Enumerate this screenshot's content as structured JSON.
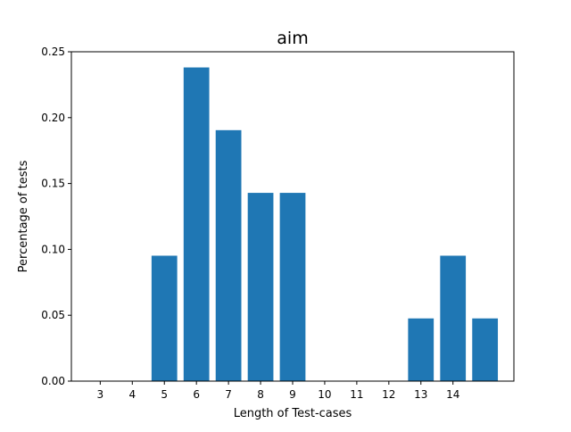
{
  "chart_data": {
    "type": "bar",
    "title": "aim",
    "xlabel": "Length of Test-cases",
    "ylabel": "Percentage of tests",
    "x_tick_labels": [
      "3",
      "4",
      "5",
      "6",
      "7",
      "8",
      "9",
      "10",
      "11",
      "12",
      "13",
      "14"
    ],
    "bars": [
      {
        "x": 3,
        "value": 0.0
      },
      {
        "x": 4,
        "value": 0.0
      },
      {
        "x": 5,
        "value": 0.0952
      },
      {
        "x": 6,
        "value": 0.2381
      },
      {
        "x": 7,
        "value": 0.1905
      },
      {
        "x": 8,
        "value": 0.1429
      },
      {
        "x": 9,
        "value": 0.1429
      },
      {
        "x": 10,
        "value": 0.0
      },
      {
        "x": 11,
        "value": 0.0
      },
      {
        "x": 12,
        "value": 0.0
      },
      {
        "x": 13,
        "value": 0.0476
      },
      {
        "x": 14,
        "value": 0.0952
      },
      {
        "x": 15,
        "value": 0.0476
      }
    ],
    "y_ticks": [
      "0.00",
      "0.05",
      "0.10",
      "0.15",
      "0.20",
      "0.25"
    ],
    "xlim": [
      2.1,
      15.9
    ],
    "ylim": [
      0,
      0.25
    ],
    "bar_color": "#1f77b4",
    "grid": false,
    "legend": "none"
  }
}
